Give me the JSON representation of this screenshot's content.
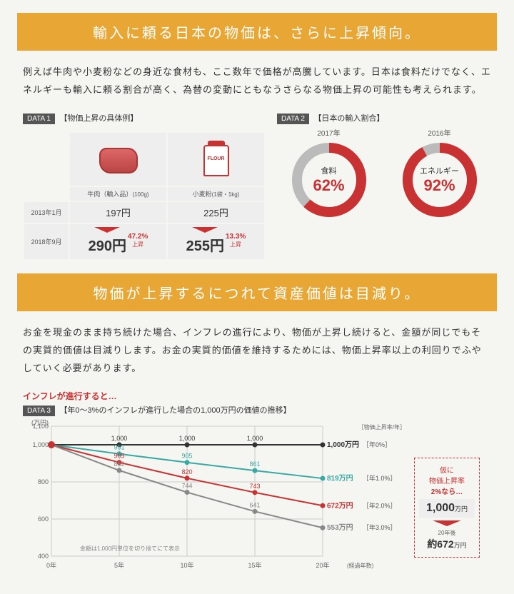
{
  "banner1": "輸入に頼る日本の物価は、さらに上昇傾向。",
  "body1": "例えば牛肉や小麦粉などの身近な食材も、ここ数年で価格が高騰しています。日本は食料だけでなく、エネルギーも輸入に頼る割合が高く、為替の変動にともなうさらなる物価上昇の可能性も考えられます。",
  "data1": {
    "label": "DATA 1",
    "title": "【物価上昇の具体例】",
    "items": [
      {
        "name": "牛肉（輸入品）",
        "unit": "(100g)",
        "old": "197円",
        "new": "290円",
        "pct": "47.2%",
        "pct_label": "上昇"
      },
      {
        "name": "小麦粉",
        "unit": "(1袋・1kg)",
        "old": "225円",
        "new": "255円",
        "pct": "13.3%",
        "pct_label": "上昇"
      }
    ],
    "date_old": "2013年1月",
    "date_new": "2018年9月",
    "flour_label": "FLOUR"
  },
  "data2": {
    "label": "DATA 2",
    "title": "【日本の輸入割合】",
    "rings": [
      {
        "year": "2017年",
        "name": "食料",
        "pct": 62,
        "pct_label": "62%",
        "color": "#c83232",
        "bg": "#bbb"
      },
      {
        "year": "2016年",
        "name": "エネルギー",
        "pct": 92,
        "pct_label": "92%",
        "color": "#c83232",
        "bg": "#bbb"
      }
    ]
  },
  "banner2": "物価が上昇するにつれて資産価値は目減り。",
  "body2": "お金を現金のまま持ち続けた場合、インフレの進行により、物価が上昇し続けると、金額が同じでもその実質的価値は目減りします。お金の実質的価値を維持するためには、物価上昇率以上の利回りでふやしていく必要があります。",
  "red_heading": "インフレが進行すると…",
  "data3": {
    "label": "DATA 3",
    "title": "【年0〜3%のインフレが進行した場合の1,000万円の価値の推移】",
    "y_unit": "(万円)",
    "y_ticks": [
      400,
      600,
      800,
      1000,
      1100
    ],
    "x_ticks": [
      "0年",
      "5年",
      "10年",
      "15年",
      "20年"
    ],
    "x_label": "(経過年数)",
    "legend_header": "［物価上昇率/年］",
    "note": "金額は1,000円単位を切り捨てにて表示",
    "series": [
      {
        "rate": "年0%",
        "color": "#333",
        "end": "1,000万円",
        "points": [
          1000,
          1000,
          1000,
          1000,
          1000
        ],
        "labels": [
          "",
          "1,000",
          "1,000",
          "1,000",
          ""
        ]
      },
      {
        "rate": "年1.0%",
        "color": "#3aa9a4",
        "end": "819万円",
        "points": [
          1000,
          951,
          905,
          861,
          819
        ],
        "labels": [
          "",
          "951",
          "905",
          "861",
          ""
        ]
      },
      {
        "rate": "年2.0%",
        "color": "#c83232",
        "end": "672万円",
        "points": [
          1000,
          905,
          820,
          743,
          672
        ],
        "labels": [
          "",
          "905",
          "820",
          "743",
          ""
        ]
      },
      {
        "rate": "年3.0%",
        "color": "#888",
        "end": "553万円",
        "points": [
          1000,
          862,
          744,
          641,
          553
        ],
        "labels": [
          "",
          "862",
          "744",
          "641",
          ""
        ]
      }
    ],
    "ylim": [
      400,
      1100
    ],
    "grid_color": "#ccc",
    "line_width": 2,
    "marker_radius": 3.5
  },
  "side": {
    "line1": "仮に",
    "line2": "物価上昇率",
    "line3": "2%なら…",
    "main": "1,000",
    "main_unit": "万円",
    "sub1": "20年後",
    "sub2": "約672",
    "sub2_unit": "万円"
  }
}
